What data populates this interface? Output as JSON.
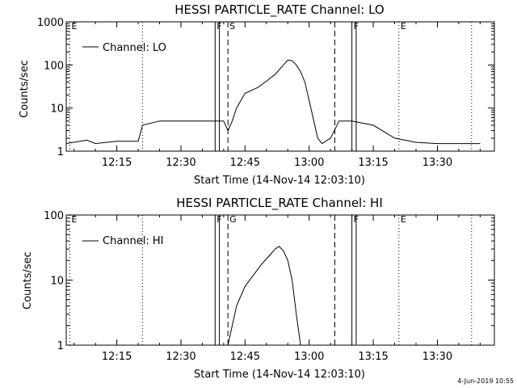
{
  "chart_data": [
    {
      "type": "line",
      "title": "HESSI PARTICLE_RATE Channel: LO",
      "xlabel": "Start Time (14-Nov-14 12:03:10)",
      "ylabel": "Counts/sec",
      "y_scale": "log",
      "ylim": [
        1,
        1000
      ],
      "xlim": [
        "12:03:10",
        "13:43:20"
      ],
      "x_ticks": [
        "12:15",
        "12:30",
        "12:45",
        "13:00",
        "13:15",
        "13:30"
      ],
      "y_ticks": [
        "1",
        "10",
        "100",
        "1000"
      ],
      "legend": "top-left",
      "series": [
        {
          "name": "Channel: LO",
          "x": [
            "12:03",
            "12:08",
            "12:10",
            "12:15",
            "12:20",
            "12:21",
            "12:25",
            "12:30",
            "12:35",
            "12:40",
            "12:41",
            "12:42",
            "12:43",
            "12:45",
            "12:48",
            "12:50",
            "12:52",
            "12:54",
            "12:55",
            "12:56",
            "12:57",
            "12:58",
            "12:59",
            "13:00",
            "13:02",
            "13:03",
            "13:05",
            "13:07",
            "13:10",
            "13:15",
            "13:20",
            "13:25",
            "13:30",
            "13:35",
            "13:40"
          ],
          "y": [
            1.5,
            1.8,
            1.5,
            1.7,
            1.7,
            4,
            5,
            5,
            5,
            5,
            3,
            5,
            10,
            22,
            30,
            42,
            60,
            100,
            130,
            125,
            100,
            70,
            40,
            15,
            2,
            1.5,
            2,
            5,
            5,
            4,
            2,
            1.6,
            1.5,
            1.5,
            1.5
          ]
        }
      ],
      "markers": [
        {
          "label": "E",
          "style": "dotted",
          "x": "12:04"
        },
        {
          "label": "",
          "style": "dotted",
          "x": "12:21"
        },
        {
          "label": "F",
          "style": "solid",
          "x": "12:38"
        },
        {
          "label": "",
          "style": "solid",
          "x": "12:39"
        },
        {
          "label": "S",
          "style": "dashed",
          "x": "12:41"
        },
        {
          "label": "",
          "style": "dashed",
          "x": "13:06"
        },
        {
          "label": "F",
          "style": "solid",
          "x": "13:10"
        },
        {
          "label": "",
          "style": "solid",
          "x": "13:11"
        },
        {
          "label": "E",
          "style": "dotted",
          "x": "13:21"
        },
        {
          "label": "",
          "style": "dotted",
          "x": "13:38"
        }
      ]
    },
    {
      "type": "line",
      "title": "HESSI PARTICLE_RATE Channel: HI",
      "xlabel": "Start Time (14-Nov-14 12:03:10)",
      "ylabel": "Counts/sec",
      "y_scale": "log",
      "ylim": [
        1,
        100
      ],
      "xlim": [
        "12:03:10",
        "13:43:20"
      ],
      "x_ticks": [
        "12:15",
        "12:30",
        "12:45",
        "13:00",
        "13:15",
        "13:30"
      ],
      "y_ticks": [
        "1",
        "10",
        "100"
      ],
      "legend": "top-left",
      "series": [
        {
          "name": "Channel: HI",
          "x": [
            "12:41",
            "12:42",
            "12:43",
            "12:45",
            "12:47",
            "12:49",
            "12:51",
            "12:52",
            "12:53",
            "12:54",
            "12:55",
            "12:56",
            "12:57",
            "12:58"
          ],
          "y": [
            1,
            2,
            4,
            8,
            12,
            18,
            25,
            30,
            33,
            28,
            20,
            10,
            3,
            1
          ]
        }
      ],
      "markers": [
        {
          "label": "E",
          "style": "dotted",
          "x": "12:04"
        },
        {
          "label": "",
          "style": "dotted",
          "x": "12:21"
        },
        {
          "label": "F",
          "style": "solid",
          "x": "12:38"
        },
        {
          "label": "",
          "style": "solid",
          "x": "12:39"
        },
        {
          "label": "G",
          "style": "dashed",
          "x": "12:41"
        },
        {
          "label": "",
          "style": "dashed",
          "x": "13:06"
        },
        {
          "label": "F",
          "style": "solid",
          "x": "13:10"
        },
        {
          "label": "",
          "style": "solid",
          "x": "13:11"
        },
        {
          "label": "E",
          "style": "dotted",
          "x": "13:21"
        },
        {
          "label": "",
          "style": "dotted",
          "x": "13:38"
        }
      ]
    }
  ],
  "footer": {
    "timestamp": "4-Jun-2019 10:55"
  }
}
